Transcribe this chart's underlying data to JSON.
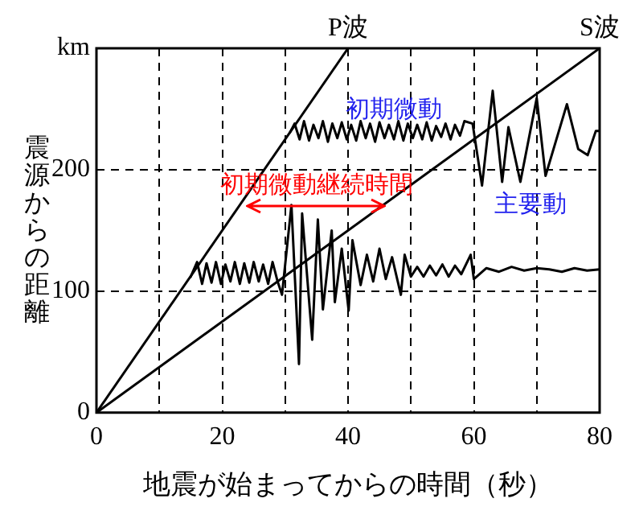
{
  "chart_data": {
    "type": "line",
    "xlabel": "地震が始まってからの時間（秒）",
    "ylabel": "震源からの距離",
    "xlim": [
      0,
      80
    ],
    "xticks": [
      0,
      {
        "value": 10,
        "label": null
      },
      20,
      {
        "value": 30,
        "label": null
      },
      40,
      {
        "value": 50,
        "label": null
      },
      60,
      {
        "value": 70,
        "label": null
      },
      80
    ],
    "ylim": [
      0,
      300
    ],
    "yticks": [
      0,
      100,
      200,
      {
        "value": 300,
        "label": "km"
      }
    ],
    "grid": true,
    "legend": false,
    "marker": "none",
    "line_style": "solid",
    "series": [
      {
        "name": "P波",
        "color": "#000000",
        "x": [
          0,
          40
        ],
        "values": [
          0,
          300
        ]
      },
      {
        "name": "S波",
        "color": "#000000",
        "x": [
          0,
          80
        ],
        "values": [
          0,
          300
        ]
      },
      {
        "color": "#000000",
        "x": [
          30.7,
          31.5,
          32.3,
          33,
          33.8,
          34.5,
          35.3,
          36,
          36.8,
          37.5,
          38.3,
          39,
          39.8,
          40.5,
          41.3,
          42,
          42.8,
          43.5,
          44.3,
          45,
          45.8,
          46.5,
          47.3,
          48,
          48.8,
          49.5,
          50.3,
          51,
          51.8,
          52.5,
          53.3,
          54,
          54.8,
          55.5,
          56.3,
          57,
          57.8,
          58.5,
          59.8,
          61.3,
          63,
          64.5,
          65.5,
          67.4,
          70,
          71.4,
          74.8,
          76.6,
          78.1,
          79.4,
          80
        ],
        "values": [
          230,
          238,
          225,
          240,
          224,
          237,
          226,
          240,
          223,
          238,
          226,
          239,
          225,
          237,
          224,
          240,
          226,
          238,
          223,
          239,
          226,
          237,
          225,
          240,
          224,
          238,
          226,
          237,
          225,
          239,
          224,
          236,
          227,
          238,
          225,
          237,
          228,
          240,
          238,
          187,
          265,
          190,
          235,
          190,
          259,
          195,
          254,
          217,
          212,
          232,
          232
        ]
      },
      {
        "color": "#000000",
        "x": [
          14.9,
          16,
          16.8,
          17.5,
          18.3,
          19,
          19.8,
          20.5,
          21.3,
          22,
          22.8,
          23.5,
          24.3,
          25,
          25.8,
          26.5,
          27.3,
          28,
          28.8,
          29.5,
          31,
          32.2,
          32.7,
          34.3,
          35.2,
          36,
          37.4,
          37.9,
          39,
          40.1,
          40.7,
          42,
          43,
          44,
          45,
          46,
          47,
          48.4,
          49,
          50,
          51,
          52,
          53,
          54,
          55,
          56,
          57,
          58,
          59.5,
          60,
          62,
          64,
          66,
          68,
          70,
          72,
          74,
          76,
          78,
          80
        ],
        "values": [
          111,
          124,
          106,
          123,
          107,
          124,
          106,
          122,
          108,
          124,
          106,
          123,
          107,
          124,
          108,
          122,
          106,
          124,
          108,
          97,
          171,
          40,
          164,
          60,
          159,
          85,
          150,
          91,
          135,
          84,
          142,
          105,
          130,
          108,
          135,
          110,
          128,
          97,
          130,
          112,
          120,
          112,
          121,
          113,
          122,
          112,
          121,
          114,
          130,
          110,
          119,
          116,
          120,
          117,
          119,
          118,
          116,
          119,
          117,
          118
        ]
      }
    ],
    "annotations": [
      "初期微動",
      "初期微動継続時間",
      "主要動"
    ]
  }
}
